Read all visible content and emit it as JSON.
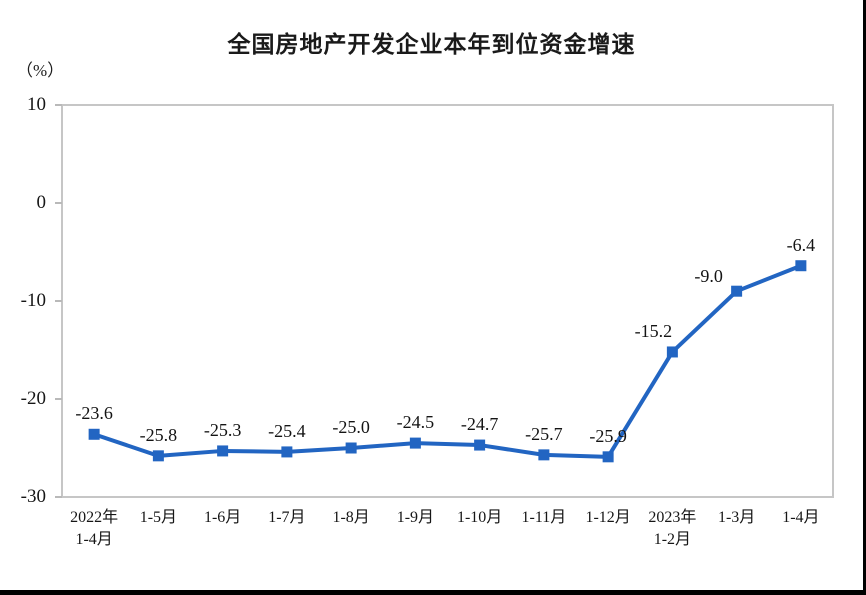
{
  "page": {
    "title": "全国房地产开发企业本年到位资金增速",
    "unit_label": "（%）"
  },
  "chart_data": {
    "type": "line",
    "title": "全国房地产开发企业本年到位资金增速",
    "ylabel": "（%）",
    "xlabel": "",
    "categories": [
      "2022年\n1-4月",
      "1-5月",
      "1-6月",
      "1-7月",
      "1-8月",
      "1-9月",
      "1-10月",
      "1-11月",
      "1-12月",
      "2023年\n1-2月",
      "1-3月",
      "1-4月"
    ],
    "values": [
      -23.6,
      -25.8,
      -25.3,
      -25.4,
      -25.0,
      -24.5,
      -24.7,
      -25.7,
      -25.9,
      -15.2,
      -9.0,
      -6.4
    ],
    "data_labels": [
      "-23.6",
      "-25.8",
      "-25.3",
      "-25.4",
      "-25.0",
      "-24.5",
      "-24.7",
      "-25.7",
      "-25.9",
      "-15.2",
      "-9.0",
      "-6.4"
    ],
    "ylim": [
      -30,
      10
    ],
    "yticks": [
      10,
      0,
      -10,
      -20,
      -30
    ],
    "grid": false,
    "legend": false,
    "line_color": "#2265c2",
    "marker": "square",
    "plot_border_color": "#c6c6c6",
    "tick_color": "#b9b9b9"
  }
}
